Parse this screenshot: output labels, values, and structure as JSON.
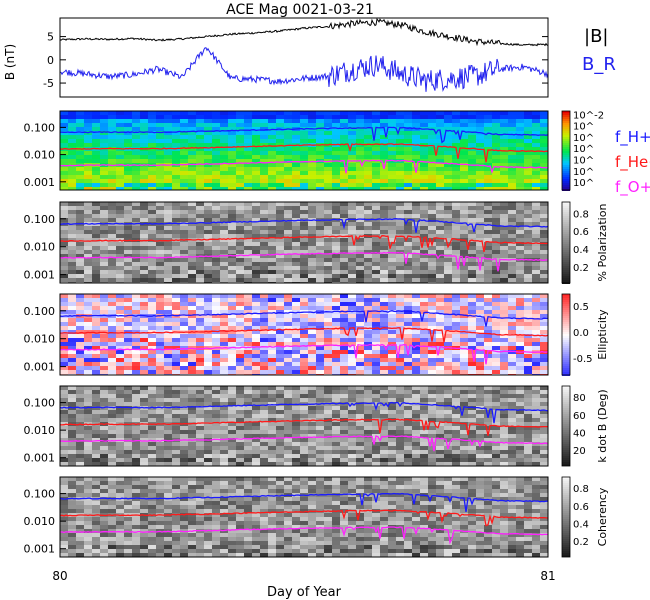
{
  "title": "ACE Mag 0021-03-21",
  "xlabel": "Day of Year",
  "x_ticks": [
    "80",
    "81"
  ],
  "colors": {
    "btotal": "#000000",
    "br": "#2222ee",
    "fh": "#1a1aff",
    "fhe": "#ff1a1a",
    "fo": "#ff22ff"
  },
  "mag_panel": {
    "ylabel": "B (nT)",
    "yticks": [
      "5",
      "0",
      "-5"
    ],
    "legend": {
      "btotal": "|B|",
      "br": "B_R"
    }
  },
  "freq_yticks": [
    "0.100",
    "0.010",
    "0.001"
  ],
  "gyro_legend": [
    "f_H+",
    "f_He+",
    "f_O+"
  ],
  "colorbars": [
    {
      "label": "",
      "ticks": [
        "10^-2",
        "10^",
        "10^",
        "10^",
        "10^",
        "10^",
        "10^"
      ],
      "scale": "rainbow"
    },
    {
      "label": "% Polarization",
      "ticks": [
        "0.8",
        "0.6",
        "0.4",
        "0.2"
      ],
      "scale": "gray"
    },
    {
      "label": "Ellipticity",
      "ticks": [
        "0.5",
        "0.0",
        "-0.5"
      ],
      "scale": "diverging"
    },
    {
      "label": "k dot B (Deg)",
      "ticks": [
        "80",
        "60",
        "40",
        "20"
      ],
      "scale": "gray"
    },
    {
      "label": "Coherency",
      "ticks": [
        "0.8",
        "0.6",
        "0.4",
        "0.2"
      ],
      "scale": "gray"
    }
  ],
  "chart_data": [
    {
      "type": "line",
      "x_range": [
        80,
        81
      ],
      "ylabel": "B (nT)",
      "ylim": [
        -8,
        9
      ],
      "series": [
        {
          "name": "|B|",
          "x": [
            80.0,
            80.05,
            80.1,
            80.15,
            80.2,
            80.25,
            80.3,
            80.35,
            80.4,
            80.45,
            80.5,
            80.55,
            80.6,
            80.65,
            80.7,
            80.75,
            80.8,
            80.85,
            80.9,
            80.95,
            81.0
          ],
          "y": [
            4.3,
            4.5,
            4.4,
            4.6,
            4.2,
            4.5,
            5.0,
            5.5,
            5.8,
            6.2,
            6.8,
            7.2,
            7.8,
            8.1,
            7.5,
            6.0,
            5.0,
            4.0,
            3.5,
            3.2,
            3.3
          ]
        },
        {
          "name": "B_R",
          "x": [
            80.0,
            80.05,
            80.1,
            80.15,
            80.2,
            80.25,
            80.3,
            80.35,
            80.4,
            80.45,
            80.5,
            80.55,
            80.6,
            80.65,
            80.7,
            80.75,
            80.8,
            80.85,
            80.9,
            80.95,
            81.0
          ],
          "y": [
            -2.5,
            -3.0,
            -3.6,
            -3.2,
            -2.0,
            -3.8,
            2.8,
            -4.0,
            -4.2,
            -4.6,
            -4.0,
            -3.5,
            -2.0,
            -1.0,
            -3.0,
            -4.5,
            -4.0,
            -3.5,
            -2.0,
            -1.5,
            -3.0
          ]
        }
      ]
    },
    {
      "type": "line",
      "x_range": [
        80,
        81
      ],
      "yscale": "log",
      "ylim": [
        0.0005,
        0.4
      ],
      "series": [
        {
          "name": "f_H+",
          "x": [
            80.0,
            80.1,
            80.2,
            80.3,
            80.4,
            80.5,
            80.6,
            80.7,
            80.8,
            80.9,
            81.0
          ],
          "y": [
            0.065,
            0.067,
            0.066,
            0.072,
            0.08,
            0.088,
            0.095,
            0.098,
            0.075,
            0.055,
            0.052
          ]
        },
        {
          "name": "f_He+",
          "x": [
            80.0,
            80.1,
            80.2,
            80.3,
            80.4,
            80.5,
            80.6,
            80.7,
            80.8,
            80.9,
            81.0
          ],
          "y": [
            0.016,
            0.0165,
            0.0165,
            0.018,
            0.02,
            0.022,
            0.024,
            0.024,
            0.019,
            0.014,
            0.013
          ]
        },
        {
          "name": "f_O+",
          "x": [
            80.0,
            80.1,
            80.2,
            80.3,
            80.4,
            80.5,
            80.6,
            80.7,
            80.8,
            80.9,
            81.0
          ],
          "y": [
            0.004,
            0.0041,
            0.0041,
            0.0045,
            0.005,
            0.0055,
            0.0059,
            0.006,
            0.0047,
            0.0035,
            0.0033
          ]
        }
      ]
    }
  ]
}
